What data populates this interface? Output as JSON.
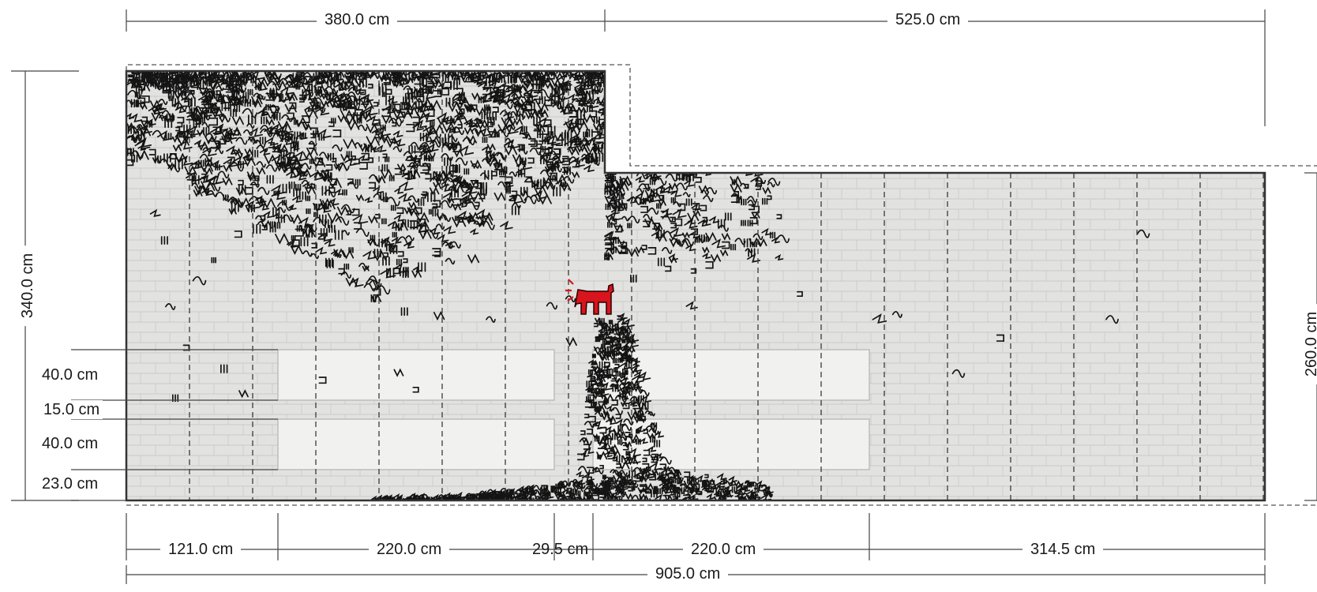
{
  "drawing": {
    "dimensions_top": [
      "380.0 cm",
      "525.0 cm"
    ],
    "dimension_left_total": "340.0 cm",
    "dimension_right_total": "260.0 cm",
    "dimensions_left_stack": [
      "40.0 cm",
      "15.0 cm",
      "40.0 cm",
      "23.0 cm"
    ],
    "dimensions_bottom": [
      "121.0 cm",
      "220.0 cm",
      "29.5 cm",
      "220.0 cm",
      "314.5 cm"
    ],
    "dimension_bottom_total": "905.0 cm"
  },
  "colors": {
    "wall": "#e2e2e0",
    "brick_line": "#c9c9c6",
    "window": "#f1f1ef",
    "graffiti": "#141414",
    "dog": "#d8141c",
    "outline": "#333333"
  },
  "artwork": {
    "figure_icon": "red-dog-icon",
    "pattern_icon": "graffiti-scribble-icon"
  }
}
